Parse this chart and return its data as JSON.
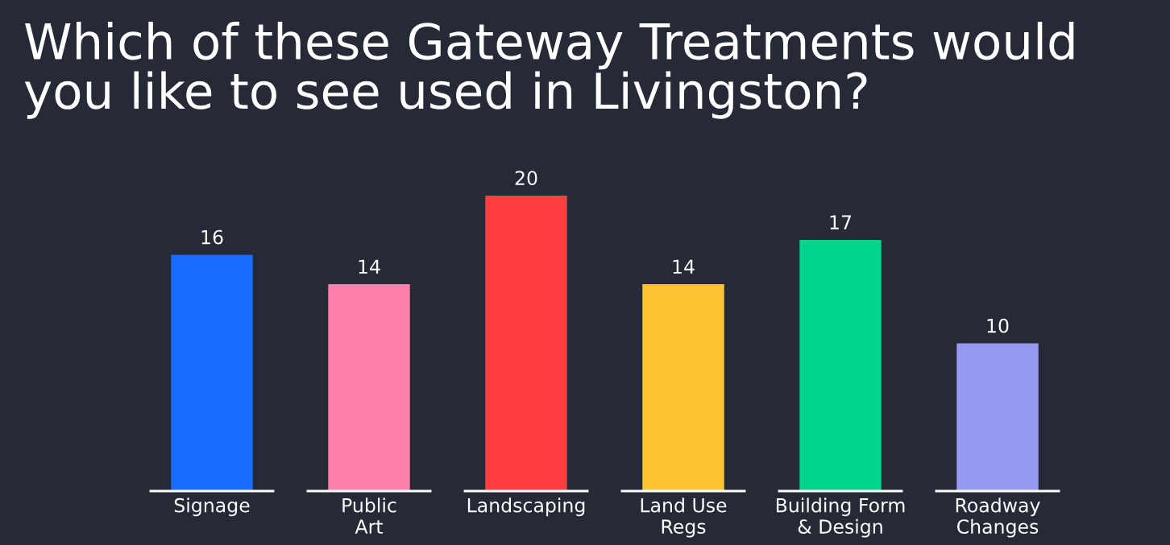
{
  "chart_data": {
    "type": "bar",
    "title": "Which of these Gateway Treatments would you like to see used in Livingston?",
    "categories": [
      "Signage",
      "Public\nArt",
      "Landscaping",
      "Land Use\nRegs",
      "Building Form\n& Design",
      "Roadway\nChanges"
    ],
    "values": [
      16,
      14,
      20,
      14,
      17,
      10
    ],
    "colors": [
      "#1a6cff",
      "#ff80ab",
      "#ff3f3f",
      "#ffc433",
      "#00d68b",
      "#9797f4"
    ],
    "data_labels": true,
    "grid": false,
    "legend": false
  }
}
